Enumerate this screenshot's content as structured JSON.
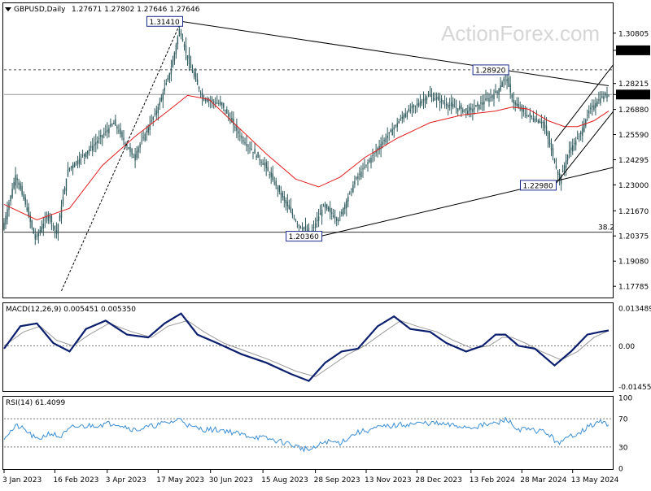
{
  "header": {
    "symbol": "GBPUSD,Daily",
    "ohlc": "1.27671 1.27802 1.27646 1.27646",
    "macd_label": "MACD(12,26,9) 0.005451 0.005350",
    "rsi_label": "RSI(14) 61.4099"
  },
  "watermark": "ActionForex.com",
  "colors": {
    "candle": "#2f5a5e",
    "ma": "#e11d1d",
    "macd_line": "#0b1f6e",
    "macd_signal": "#9a9a9a",
    "rsi_line": "#3b8fd6",
    "trend": "#000000",
    "label_box": "#1a2a8a",
    "price_badge": "#000000"
  },
  "chart_data": [
    {
      "type": "candlestick",
      "title": "GBPUSD,Daily",
      "ylim": [
        1.1725,
        1.323
      ],
      "price_ticks": [
        "1.30805",
        "1.29920",
        "1.28215",
        "1.27646",
        "1.26880",
        "1.25590",
        "1.24295",
        "1.23000",
        "1.21670",
        "1.20375",
        "1.19080",
        "1.17785"
      ],
      "price_tick_values": [
        1.30805,
        1.2992,
        1.28215,
        1.27646,
        1.2688,
        1.2559,
        1.24295,
        1.23,
        1.2167,
        1.20375,
        1.1908,
        1.17785
      ],
      "x_tick_labels": [
        "3 Jan 2023",
        "16 Feb 2023",
        "3 Apr 2023",
        "17 May 2023",
        "30 Jun 2023",
        "15 Aug 2023",
        "28 Sep 2023",
        "13 Nov 2023",
        "28 Dec 2023",
        "13 Feb 2024",
        "28 Mar 2024",
        "13 May 2024"
      ],
      "series": [
        {
          "kind": "close_path_keypoints",
          "points": [
            [
              0,
              1.207
            ],
            [
              8,
              1.235
            ],
            [
              14,
              1.22
            ],
            [
              20,
              1.202
            ],
            [
              28,
              1.215
            ],
            [
              33,
              1.205
            ],
            [
              40,
              1.238
            ],
            [
              55,
              1.25
            ],
            [
              68,
              1.262
            ],
            [
              80,
              1.244
            ],
            [
              95,
              1.27
            ],
            [
              103,
              1.29
            ],
            [
              108,
              1.31
            ],
            [
              114,
              1.292
            ],
            [
              122,
              1.275
            ],
            [
              134,
              1.271
            ],
            [
              145,
              1.255
            ],
            [
              160,
              1.24
            ],
            [
              170,
              1.225
            ],
            [
              180,
              1.21
            ],
            [
              188,
              1.205
            ],
            [
              196,
              1.219
            ],
            [
              205,
              1.212
            ],
            [
              215,
              1.232
            ],
            [
              230,
              1.25
            ],
            [
              245,
              1.266
            ],
            [
              260,
              1.276
            ],
            [
              275,
              1.27
            ],
            [
              285,
              1.268
            ],
            [
              296,
              1.274
            ],
            [
              302,
              1.278
            ],
            [
              307,
              1.286
            ],
            [
              312,
              1.272
            ],
            [
              320,
              1.266
            ],
            [
              330,
              1.262
            ],
            [
              336,
              1.245
            ],
            [
              340,
              1.232
            ],
            [
              346,
              1.248
            ],
            [
              352,
              1.255
            ],
            [
              358,
              1.268
            ],
            [
              364,
              1.274
            ],
            [
              369,
              1.2765
            ]
          ]
        },
        {
          "name": "moving-average",
          "points": [
            [
              0,
              1.22
            ],
            [
              20,
              1.212
            ],
            [
              40,
              1.218
            ],
            [
              60,
              1.24
            ],
            [
              80,
              1.255
            ],
            [
              100,
              1.268
            ],
            [
              112,
              1.276
            ],
            [
              125,
              1.274
            ],
            [
              140,
              1.262
            ],
            [
              160,
              1.246
            ],
            [
              178,
              1.233
            ],
            [
              192,
              1.229
            ],
            [
              205,
              1.234
            ],
            [
              220,
              1.244
            ],
            [
              240,
              1.254
            ],
            [
              260,
              1.262
            ],
            [
              280,
              1.266
            ],
            [
              300,
              1.268
            ],
            [
              310,
              1.27
            ],
            [
              320,
              1.269
            ],
            [
              332,
              1.263
            ],
            [
              342,
              1.26
            ],
            [
              350,
              1.26
            ],
            [
              360,
              1.263
            ],
            [
              369,
              1.268
            ]
          ]
        }
      ],
      "annotations": [
        {
          "text": "1.31410",
          "x": 108,
          "y": 1.3141
        },
        {
          "text": "1.28920",
          "x": 307,
          "y": 1.2892
        },
        {
          "text": "1.22980",
          "x": 336,
          "y": 1.2298
        },
        {
          "text": "1.20360",
          "x": 193,
          "y": 1.2036
        },
        {
          "text": "38.2",
          "x": 369,
          "y": 1.2057
        }
      ],
      "horizontal_levels": [
        {
          "value": 1.2892,
          "style": "dashed"
        },
        {
          "value": 1.27646,
          "style": "solid-gray"
        },
        {
          "value": 1.2057,
          "style": "solid"
        }
      ],
      "trendlines": [
        {
          "from": [
            35,
            1.1755
          ],
          "to": [
            108,
            1.3141
          ]
        },
        {
          "from": [
            108,
            1.3141
          ],
          "to": [
            369,
            1.281
          ]
        },
        {
          "from": [
            193,
            1.2036
          ],
          "to": [
            372,
            1.239
          ]
        },
        {
          "from": [
            336,
            1.2298
          ],
          "to": [
            372,
            1.268
          ]
        },
        {
          "from": [
            336,
            1.2525
          ],
          "to": [
            372,
            1.292
          ]
        }
      ]
    },
    {
      "type": "line",
      "title": "MACD(12,26,9) 0.005451 0.005350",
      "ylim": [
        -0.0158,
        0.0149
      ],
      "y_ticks": [
        "0.013489",
        "0.00",
        "-0.014554"
      ],
      "y_tick_values": [
        0.013489,
        0,
        -0.014554
      ],
      "series": [
        {
          "name": "macd",
          "points": [
            [
              0,
              -0.001
            ],
            [
              10,
              0.007
            ],
            [
              20,
              0.008
            ],
            [
              30,
              0.001
            ],
            [
              40,
              -0.002
            ],
            [
              50,
              0.006
            ],
            [
              62,
              0.009
            ],
            [
              75,
              0.004
            ],
            [
              88,
              0.003
            ],
            [
              98,
              0.008
            ],
            [
              108,
              0.0115
            ],
            [
              118,
              0.004
            ],
            [
              130,
              0.001
            ],
            [
              145,
              -0.003
            ],
            [
              160,
              -0.006
            ],
            [
              175,
              -0.01
            ],
            [
              186,
              -0.0125
            ],
            [
              196,
              -0.006
            ],
            [
              206,
              -0.002
            ],
            [
              216,
              -0.001
            ],
            [
              228,
              0.007
            ],
            [
              238,
              0.0105
            ],
            [
              248,
              0.006
            ],
            [
              260,
              0.005
            ],
            [
              270,
              0.001
            ],
            [
              282,
              -0.002
            ],
            [
              292,
              0.0
            ],
            [
              300,
              0.004
            ],
            [
              306,
              0.004
            ],
            [
              314,
              0.0
            ],
            [
              324,
              -0.001
            ],
            [
              336,
              -0.007
            ],
            [
              346,
              -0.002
            ],
            [
              356,
              0.004
            ],
            [
              364,
              0.005
            ],
            [
              369,
              0.0055
            ]
          ]
        },
        {
          "name": "signal",
          "points": [
            [
              0,
              0.0
            ],
            [
              12,
              0.005
            ],
            [
              22,
              0.007
            ],
            [
              32,
              0.002
            ],
            [
              42,
              0.0
            ],
            [
              52,
              0.004
            ],
            [
              64,
              0.008
            ],
            [
              78,
              0.005
            ],
            [
              90,
              0.003
            ],
            [
              100,
              0.007
            ],
            [
              112,
              0.009
            ],
            [
              122,
              0.005
            ],
            [
              134,
              0.001
            ],
            [
              148,
              -0.002
            ],
            [
              162,
              -0.005
            ],
            [
              178,
              -0.009
            ],
            [
              190,
              -0.011
            ],
            [
              200,
              -0.007
            ],
            [
              210,
              -0.003
            ],
            [
              220,
              0.0
            ],
            [
              232,
              0.005
            ],
            [
              242,
              0.009
            ],
            [
              252,
              0.007
            ],
            [
              264,
              0.005
            ],
            [
              274,
              0.002
            ],
            [
              286,
              -0.001
            ],
            [
              296,
              0.0
            ],
            [
              304,
              0.003
            ],
            [
              310,
              0.003
            ],
            [
              318,
              0.001
            ],
            [
              328,
              -0.002
            ],
            [
              340,
              -0.005
            ],
            [
              350,
              -0.002
            ],
            [
              360,
              0.003
            ],
            [
              369,
              0.0054
            ]
          ]
        }
      ]
    },
    {
      "type": "line",
      "title": "RSI(14) 61.4099",
      "ylim": [
        0,
        100
      ],
      "y_ticks": [
        "100",
        "70",
        "30",
        "0"
      ],
      "y_tick_values": [
        100,
        70,
        30,
        0
      ],
      "series": [
        {
          "name": "rsi",
          "points": [
            [
              0,
              44
            ],
            [
              8,
              60
            ],
            [
              14,
              52
            ],
            [
              20,
              40
            ],
            [
              28,
              50
            ],
            [
              34,
              44
            ],
            [
              42,
              58
            ],
            [
              56,
              61
            ],
            [
              68,
              64
            ],
            [
              80,
              54
            ],
            [
              95,
              62
            ],
            [
              103,
              66
            ],
            [
              108,
              70
            ],
            [
              114,
              58
            ],
            [
              122,
              55
            ],
            [
              134,
              54
            ],
            [
              146,
              47
            ],
            [
              160,
              42
            ],
            [
              172,
              36
            ],
            [
              182,
              28
            ],
            [
              188,
              26
            ],
            [
              196,
              38
            ],
            [
              205,
              36
            ],
            [
              215,
              50
            ],
            [
              230,
              58
            ],
            [
              245,
              62
            ],
            [
              260,
              64
            ],
            [
              275,
              60
            ],
            [
              285,
              58
            ],
            [
              296,
              62
            ],
            [
              302,
              64
            ],
            [
              307,
              70
            ],
            [
              312,
              56
            ],
            [
              320,
              54
            ],
            [
              330,
              52
            ],
            [
              336,
              40
            ],
            [
              340,
              36
            ],
            [
              346,
              46
            ],
            [
              352,
              52
            ],
            [
              358,
              60
            ],
            [
              364,
              66
            ],
            [
              369,
              61.4
            ]
          ]
        }
      ]
    }
  ]
}
